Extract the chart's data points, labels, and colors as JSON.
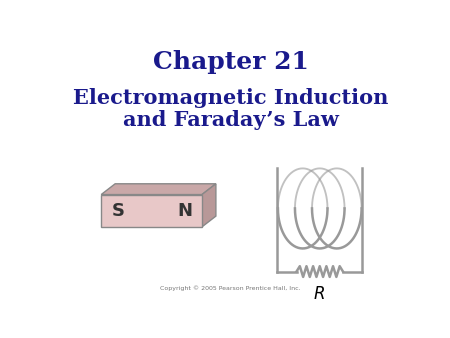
{
  "title": "Chapter 21",
  "subtitle_line1": "Electromagnetic Induction",
  "subtitle_line2": "and Faraday’s Law",
  "title_color": "#1a1a8c",
  "subtitle_color": "#1a1a8c",
  "bg_color": "#ffffff",
  "copyright": "Copyright © 2005 Pearson Prentice Hall, Inc.",
  "magnet_face_color": "#e8c8c8",
  "magnet_top_color": "#c9a8a8",
  "magnet_side_color": "#b89898",
  "magnet_border_color": "#888888",
  "coil_color": "#999999",
  "R_label": "R",
  "title_fontsize": 18,
  "subtitle_fontsize": 15
}
